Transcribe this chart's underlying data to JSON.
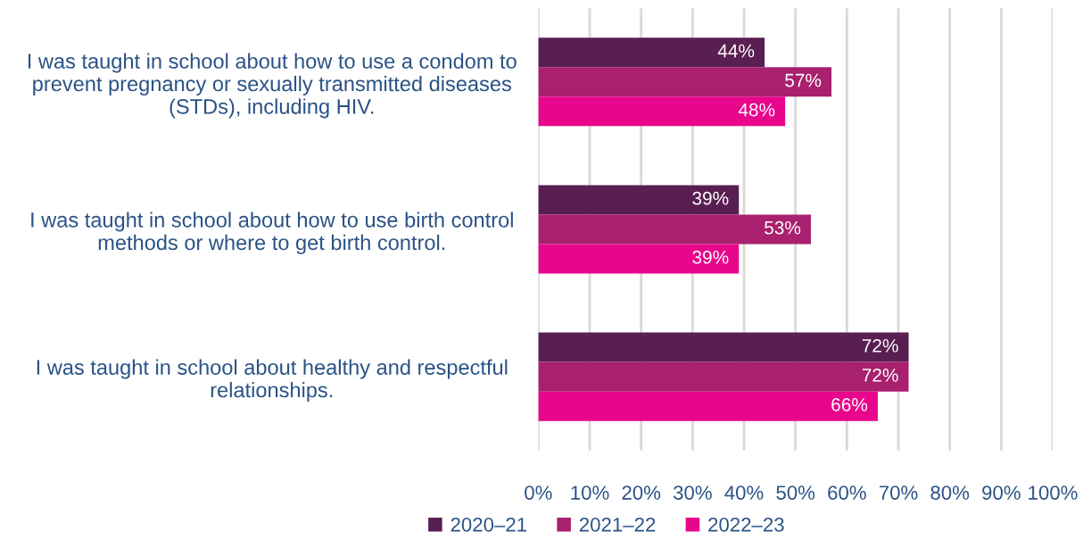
{
  "chart_data": {
    "type": "bar",
    "orientation": "horizontal",
    "categories": [
      "I was taught in school about how to use a condom to\nprevent pregnancy or sexually transmitted diseases\n(STDs), including HIV.",
      "I was taught in school about how to use birth control\nmethods or where to get birth control.",
      "I was taught in school about healthy and respectful\nrelationships."
    ],
    "series": [
      {
        "name": "2020–21",
        "color": "#5a1f52",
        "values": [
          44,
          39,
          72
        ],
        "value_labels": [
          "44%",
          "39%",
          "72%"
        ]
      },
      {
        "name": "2021–22",
        "color": "#a8206e",
        "values": [
          57,
          53,
          72
        ],
        "value_labels": [
          "57%",
          "53%",
          "72%"
        ]
      },
      {
        "name": "2022–23",
        "color": "#e8068c",
        "values": [
          48,
          39,
          66
        ],
        "value_labels": [
          "48%",
          "39%",
          "66%"
        ]
      }
    ],
    "xlim": [
      0,
      100
    ],
    "xticks": [
      {
        "value": 0,
        "label": "0%"
      },
      {
        "value": 10,
        "label": "10%"
      },
      {
        "value": 20,
        "label": "20%"
      },
      {
        "value": 30,
        "label": "30%"
      },
      {
        "value": 40,
        "label": "40%"
      },
      {
        "value": 50,
        "label": "50%"
      },
      {
        "value": 60,
        "label": "60%"
      },
      {
        "value": 70,
        "label": "70%"
      },
      {
        "value": 80,
        "label": "80%"
      },
      {
        "value": 90,
        "label": "90%"
      },
      {
        "value": 100,
        "label": "100%"
      }
    ],
    "grid": "x",
    "legend": "bottom"
  }
}
